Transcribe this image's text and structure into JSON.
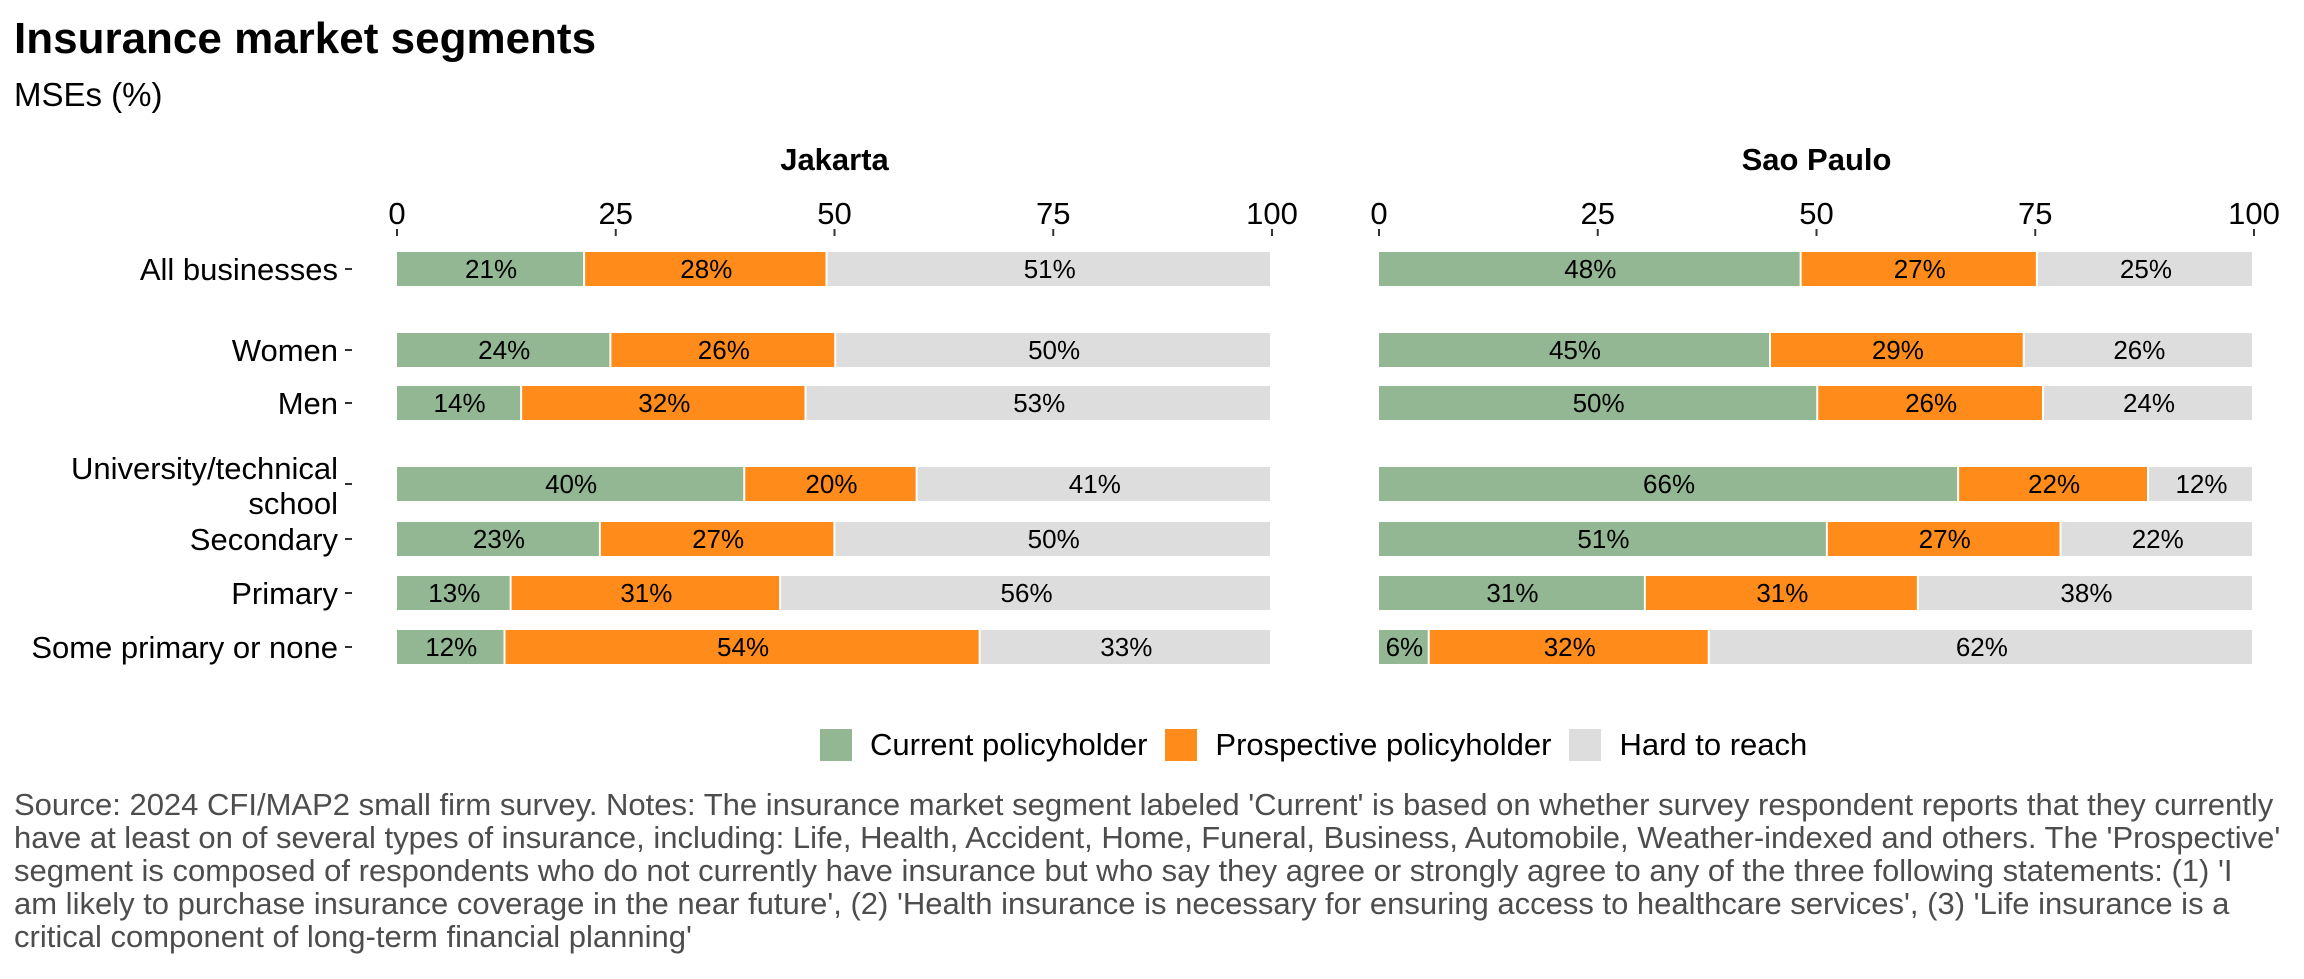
{
  "title": "Insurance market segments",
  "subtitle": "MSEs (%)",
  "source": "Source: 2024 CFI/MAP2 small firm survey. Notes: The insurance market segment labeled 'Current' is based on whether survey respondent reports that they currently have at least on of several types of insurance, including: Life, Health, Accident, Home, Funeral, Business, Automobile, Weather-indexed and others. The 'Prospective' segment is composed of respondents who do not currently have insurance but who say they agree or strongly agree to any of the three following statements: (1) 'I am likely to purchase insurance coverage in the near future', (2) 'Health insurance is necessary for ensuring access to healthcare services', (3) 'Life insurance is a critical component of long-term financial planning'",
  "legend": [
    {
      "label": "Current policyholder",
      "color": "#93b793"
    },
    {
      "label": "Prospective policyholder",
      "color": "#ff8c1a"
    },
    {
      "label": "Hard to reach",
      "color": "#dddddd"
    }
  ],
  "chart_data": {
    "type": "bar",
    "orientation": "horizontal",
    "stacked": true,
    "xlim": [
      0,
      100
    ],
    "ticks": [
      "0",
      "25",
      "50",
      "75",
      "100"
    ],
    "legend_position": "bottom",
    "categories": [
      {
        "label": "All businesses"
      },
      {
        "label": "Women"
      },
      {
        "label": "Men"
      },
      {
        "label": "University/technical",
        "label2": "school"
      },
      {
        "label": "Secondary"
      },
      {
        "label": "Primary"
      },
      {
        "label": "Some primary or none"
      }
    ],
    "panels": [
      {
        "name": "Jakarta",
        "series": [
          {
            "name": "Current policyholder",
            "values": [
              21.5,
              24.5,
              14.3,
              39.8,
              23.3,
              13.1,
              12.4
            ],
            "labels": [
              "21%",
              "24%",
              "14%",
              "40%",
              "23%",
              "13%",
              "12%"
            ]
          },
          {
            "name": "Prospective policyholder",
            "values": [
              27.7,
              25.7,
              32.5,
              19.7,
              26.8,
              30.8,
              54.3
            ],
            "labels": [
              "28%",
              "26%",
              "32%",
              "20%",
              "27%",
              "31%",
              "54%"
            ]
          },
          {
            "name": "Hard to reach",
            "values": [
              50.8,
              49.8,
              53.2,
              40.5,
              49.9,
              56.1,
              33.3
            ],
            "labels": [
              "51%",
              "50%",
              "53%",
              "41%",
              "50%",
              "56%",
              "33%"
            ]
          }
        ]
      },
      {
        "name": "Sao Paulo",
        "series": [
          {
            "name": "Current policyholder",
            "values": [
              48.3,
              44.8,
              50.2,
              66.3,
              51.3,
              30.5,
              5.8
            ],
            "labels": [
              "48%",
              "45%",
              "50%",
              "66%",
              "51%",
              "31%",
              "6%"
            ]
          },
          {
            "name": "Prospective policyholder",
            "values": [
              27,
              29,
              25.8,
              21.7,
              26.7,
              31.2,
              32
            ],
            "labels": [
              "27%",
              "29%",
              "26%",
              "22%",
              "27%",
              "31%",
              "32%"
            ]
          },
          {
            "name": "Hard to reach",
            "values": [
              24.7,
              26.2,
              24,
              12,
              22,
              38.3,
              62.2
            ],
            "labels": [
              "25%",
              "26%",
              "24%",
              "12%",
              "22%",
              "38%",
              "62%"
            ]
          }
        ]
      }
    ]
  }
}
